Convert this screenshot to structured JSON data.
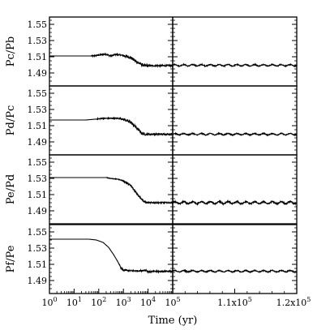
{
  "chart_data": {
    "type": "line",
    "xlabel": "Time (yr)",
    "x_left_ticks": [
      "10^0",
      "10^1",
      "10^2",
      "10^3",
      "10^4",
      "10^5"
    ],
    "x_right_ticks": [
      "1.1x10^5",
      "1.2x10^5"
    ],
    "x_left_range": [
      1,
      100000
    ],
    "x_left_scale": "log",
    "x_right_range": [
      100000,
      120000
    ],
    "x_right_scale": "linear",
    "ylim": [
      1.48,
      1.555
    ],
    "y_ticks": [
      "1.49",
      "1.51",
      "1.53",
      "1.55"
    ],
    "grid": false,
    "panels": [
      {
        "ylabel": "P_c/P_b",
        "ylabel_display": "Pc/Pb",
        "left_series": [
          [
            1,
            1.511
          ],
          [
            30,
            1.511
          ],
          [
            60,
            1.511
          ],
          [
            100,
            1.512
          ],
          [
            150,
            1.513
          ],
          [
            200,
            1.513
          ],
          [
            300,
            1.511
          ],
          [
            500,
            1.513
          ],
          [
            800,
            1.512
          ],
          [
            1200,
            1.511
          ],
          [
            2000,
            1.509
          ],
          [
            3000,
            1.505
          ],
          [
            5000,
            1.501
          ],
          [
            7000,
            1.499
          ],
          [
            10000,
            1.499
          ],
          [
            100000,
            1.499
          ]
        ],
        "left_noise": [
          [
            50,
            1000,
            0.0008
          ],
          [
            1000,
            10000,
            0.0018
          ],
          [
            10000,
            100000,
            0.001
          ]
        ],
        "right_level": 1.4995,
        "right_amplitude": 0.0009
      },
      {
        "ylabel": "P_d/P_c",
        "ylabel_display": "Pd/Pc",
        "left_series": [
          [
            1,
            1.517
          ],
          [
            30,
            1.517
          ],
          [
            70,
            1.518
          ],
          [
            150,
            1.519
          ],
          [
            300,
            1.519
          ],
          [
            600,
            1.519
          ],
          [
            1000,
            1.518
          ],
          [
            2000,
            1.514
          ],
          [
            3000,
            1.509
          ],
          [
            4000,
            1.505
          ],
          [
            6000,
            1.5
          ],
          [
            8000,
            1.4995
          ],
          [
            10000,
            1.4995
          ],
          [
            100000,
            1.4995
          ]
        ],
        "left_noise": [
          [
            80,
            1000,
            0.0007
          ],
          [
            1000,
            10000,
            0.0016
          ],
          [
            10000,
            100000,
            0.001
          ]
        ],
        "right_level": 1.4995,
        "right_amplitude": 0.0009
      },
      {
        "ylabel": "P_e/P_d",
        "ylabel_display": "Pe/Pd",
        "left_series": [
          [
            1,
            1.531
          ],
          [
            50,
            1.531
          ],
          [
            100,
            1.531
          ],
          [
            200,
            1.531
          ],
          [
            300,
            1.53
          ],
          [
            600,
            1.529
          ],
          [
            1000,
            1.527
          ],
          [
            2000,
            1.521
          ],
          [
            3000,
            1.514
          ],
          [
            5000,
            1.506
          ],
          [
            7000,
            1.501
          ],
          [
            10000,
            1.5
          ],
          [
            100000,
            1.5
          ]
        ],
        "left_noise": [
          [
            200,
            1000,
            0.0004
          ],
          [
            1000,
            10000,
            0.0012
          ],
          [
            10000,
            100000,
            0.0008
          ]
        ],
        "right_level": 1.5,
        "right_amplitude": 0.0013
      },
      {
        "ylabel": "P_f/P_e",
        "ylabel_display": "Pf/Pe",
        "left_series": [
          [
            1,
            1.541
          ],
          [
            40,
            1.541
          ],
          [
            80,
            1.54
          ],
          [
            150,
            1.537
          ],
          [
            250,
            1.531
          ],
          [
            400,
            1.522
          ],
          [
            600,
            1.513
          ],
          [
            800,
            1.505
          ],
          [
            1000,
            1.503
          ],
          [
            2000,
            1.502
          ],
          [
            5000,
            1.502
          ],
          [
            8000,
            1.503
          ],
          [
            10000,
            1.501
          ],
          [
            100000,
            1.5015
          ]
        ],
        "left_noise": [
          [
            700,
            100000,
            0.0009
          ]
        ],
        "right_level": 1.5015,
        "right_amplitude": 0.0009
      }
    ]
  }
}
